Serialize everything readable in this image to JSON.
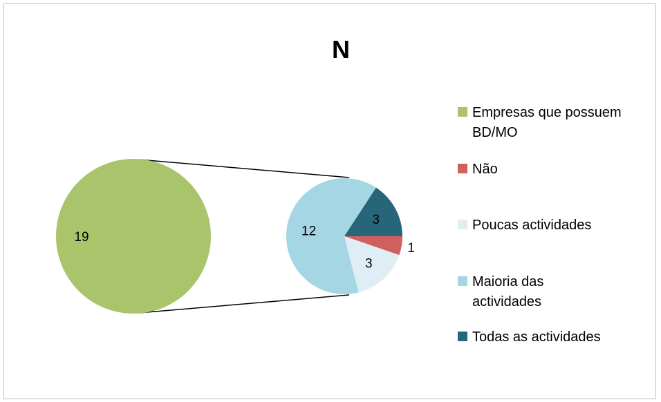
{
  "chart_data": {
    "type": "pie",
    "subtype": "pie-of-pie",
    "title": "N",
    "legend_position": "right",
    "primary": {
      "slices": [
        {
          "label": "Empresas que possuem BD/MO",
          "value": 19,
          "color": "#a9c46a"
        }
      ]
    },
    "secondary": {
      "slices": [
        {
          "label": "Não",
          "value": 1,
          "color": "#d0605e"
        },
        {
          "label": "Poucas actividades",
          "value": 3,
          "color": "#dfeef5"
        },
        {
          "label": "Maioria das actividades",
          "value": 12,
          "color": "#a5d6e3"
        },
        {
          "label": "Todas as actividades",
          "value": 3,
          "color": "#276579"
        }
      ]
    },
    "legend": [
      {
        "label": "Empresas que possuem BD/MO",
        "color": "#a9c46a"
      },
      {
        "label": "Não",
        "color": "#d0605e"
      },
      {
        "label": "Poucas actividades",
        "color": "#dfeef5"
      },
      {
        "label": "Maioria das actividades",
        "color": "#a5d6e3"
      },
      {
        "label": "Todas as actividades",
        "color": "#276579"
      }
    ]
  }
}
